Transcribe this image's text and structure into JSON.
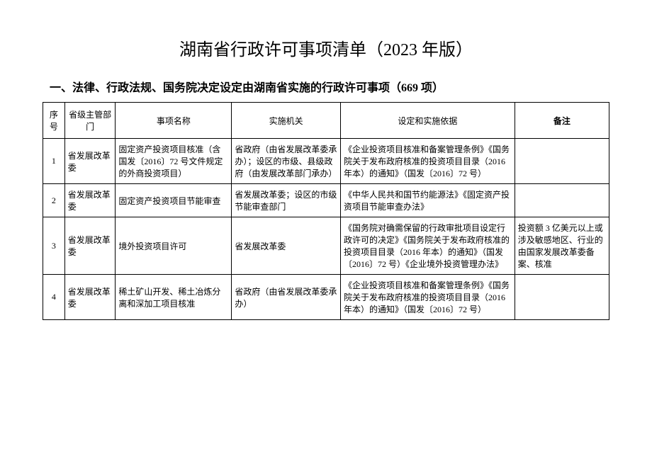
{
  "title": "湖南省行政许可事项清单（2023 年版）",
  "subtitle": "一、法律、行政法规、国务院决定设定由湖南省实施的行政许可事项（669 项）",
  "headers": {
    "seq": "序号",
    "dept": "省级主管部门",
    "name": "事项名称",
    "agency": "实施机关",
    "basis": "设定和实施依据",
    "remark": "备注"
  },
  "rows": [
    {
      "seq": "1",
      "dept": "省发展改革委",
      "name": "固定资产投资项目核准（含国发〔2016〕72 号文件规定的外商投资项目）",
      "agency": "省政府（由省发展改革委承办）；设区的市级、县级政府（由发展改革部门承办）",
      "basis": "《企业投资项目核准和备案管理条例》《国务院关于发布政府核准的投资项目目录（2016 年本）的通知》（国发〔2016〕72 号）",
      "remark": ""
    },
    {
      "seq": "2",
      "dept": "省发展改革委",
      "name": "固定资产投资项目节能审查",
      "agency": "省发展改革委；设区的市级节能审查部门",
      "basis": "《中华人民共和国节约能源法》《固定资产投资项目节能审查办法》",
      "remark": ""
    },
    {
      "seq": "3",
      "dept": "省发展改革委",
      "name": "境外投资项目许可",
      "agency": "省发展改革委",
      "basis": "《国务院对确需保留的行政审批项目设定行政许可的决定》《国务院关于发布政府核准的投资项目目录（2016 年本）的通知》（国发〔2016〕72 号）《企业境外投资管理办法》",
      "remark": "投资额 3 亿美元以上或涉及敏感地区、行业的由国家发展改革委备案、核准"
    },
    {
      "seq": "4",
      "dept": "省发展改革委",
      "name": "稀土矿山开发、稀土冶炼分离和深加工项目核准",
      "agency": "省政府（由省发展改革委承办）",
      "basis": "《企业投资项目核准和备案管理条例》《国务院关于发布政府核准的投资项目目录（2016 年本）的通知》（国发〔2016〕72 号）",
      "remark": ""
    }
  ],
  "style": {
    "background_color": "#ffffff",
    "text_color": "#000000",
    "border_color": "#000000",
    "title_fontsize": 24,
    "subtitle_fontsize": 16,
    "table_fontsize": 12,
    "font_family": "SimSun"
  }
}
